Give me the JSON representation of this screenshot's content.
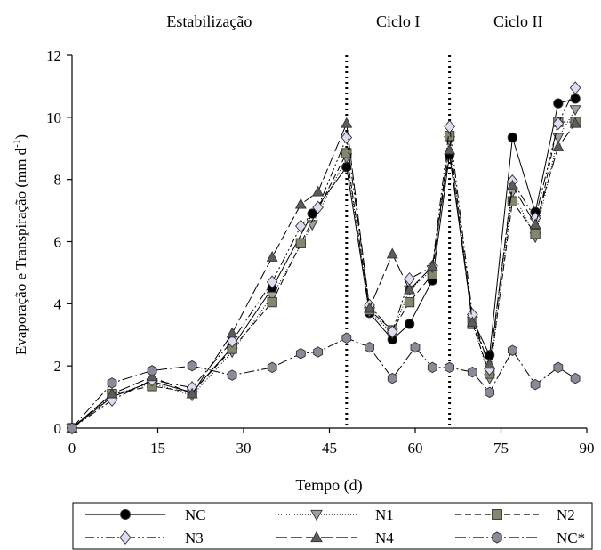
{
  "chart_data": {
    "type": "line",
    "title": "",
    "xlabel": "Tempo (d)",
    "ylabel_main": "Evaporação e Transpiração (mm d",
    "ylabel_sup": "-1",
    "ylabel_close": ")",
    "xlim": [
      0,
      90
    ],
    "ylim": [
      0,
      12
    ],
    "xticks": [
      0,
      15,
      30,
      45,
      60,
      75,
      90
    ],
    "yticks": [
      0,
      2,
      4,
      6,
      8,
      10,
      12
    ],
    "grid": false,
    "legend_position": "bottom",
    "period_labels": [
      {
        "text": "Estabilização",
        "x": 24
      },
      {
        "text": "Ciclo I",
        "x": 57
      },
      {
        "text": "Ciclo II",
        "x": 78
      }
    ],
    "dividers": [
      48,
      66
    ],
    "series": [
      {
        "name": "NC",
        "marker": "circle",
        "fill": "#000000",
        "dash": "none",
        "x": [
          0,
          7,
          14,
          21,
          28,
          35,
          42,
          48,
          52,
          56,
          59,
          63,
          66,
          70,
          73,
          77,
          81,
          85,
          88
        ],
        "y": [
          0,
          1.0,
          1.5,
          1.15,
          2.6,
          4.5,
          6.9,
          8.4,
          3.7,
          2.85,
          3.35,
          4.75,
          8.8,
          3.5,
          2.35,
          9.35,
          6.95,
          10.45,
          10.6
        ]
      },
      {
        "name": "N1",
        "marker": "triangle-down",
        "fill": "#a0a0a0",
        "dash": "1 2",
        "x": [
          0,
          7,
          14,
          21,
          28,
          35,
          42,
          48,
          52,
          56,
          59,
          63,
          66,
          70,
          73,
          77,
          81,
          85,
          88
        ],
        "y": [
          0,
          1.05,
          1.45,
          1.05,
          2.45,
          4.25,
          6.55,
          8.7,
          3.75,
          3.05,
          4.45,
          5.1,
          9.25,
          3.45,
          1.6,
          7.6,
          6.15,
          9.35,
          10.25
        ]
      },
      {
        "name": "N2",
        "marker": "square",
        "fill": "#85866e",
        "dash": "7 4",
        "x": [
          0,
          7,
          14,
          21,
          28,
          35,
          40,
          48,
          52,
          56,
          59,
          63,
          66,
          70,
          73,
          77,
          81,
          85,
          88
        ],
        "y": [
          0,
          1.1,
          1.35,
          1.15,
          2.55,
          4.05,
          5.95,
          8.85,
          3.8,
          3.15,
          4.05,
          4.95,
          9.4,
          3.35,
          1.75,
          7.3,
          6.25,
          9.85,
          9.85
        ]
      },
      {
        "name": "N3",
        "marker": "diamond",
        "fill": "#dcdcf2",
        "dash": "10 3 2 3 2 3",
        "x": [
          0,
          7,
          14,
          21,
          28,
          35,
          40,
          43,
          48,
          52,
          56,
          59,
          63,
          66,
          70,
          73,
          77,
          81,
          85,
          88
        ],
        "y": [
          0,
          0.9,
          1.55,
          1.3,
          2.8,
          4.7,
          6.5,
          7.1,
          9.35,
          3.95,
          3.1,
          4.8,
          5.2,
          9.7,
          3.65,
          1.9,
          7.95,
          6.75,
          9.8,
          10.95
        ]
      },
      {
        "name": "N4",
        "marker": "triangle-up",
        "fill": "#5c5c5c",
        "dash": "13 4",
        "x": [
          0,
          7,
          14,
          21,
          28,
          35,
          40,
          43,
          48,
          52,
          56,
          59,
          63,
          66,
          70,
          73,
          77,
          81,
          85,
          88
        ],
        "y": [
          0,
          1.1,
          1.65,
          1.1,
          3.05,
          5.5,
          7.2,
          7.6,
          9.8,
          3.85,
          5.6,
          4.45,
          5.2,
          8.95,
          3.4,
          2.05,
          7.8,
          6.55,
          9.05,
          9.8
        ]
      },
      {
        "name": "NC*",
        "marker": "hexagon",
        "fill": "#8a8a98",
        "dash": "12 3 2 3",
        "x": [
          0,
          7,
          14,
          21,
          28,
          35,
          40,
          43,
          48,
          52,
          56,
          60,
          63,
          66,
          70,
          73,
          77,
          81,
          85,
          88
        ],
        "y": [
          0,
          1.45,
          1.85,
          2.0,
          1.7,
          1.95,
          2.4,
          2.45,
          2.9,
          2.6,
          1.6,
          2.6,
          1.95,
          1.95,
          1.8,
          1.15,
          2.5,
          1.4,
          1.95,
          1.6
        ]
      }
    ]
  }
}
